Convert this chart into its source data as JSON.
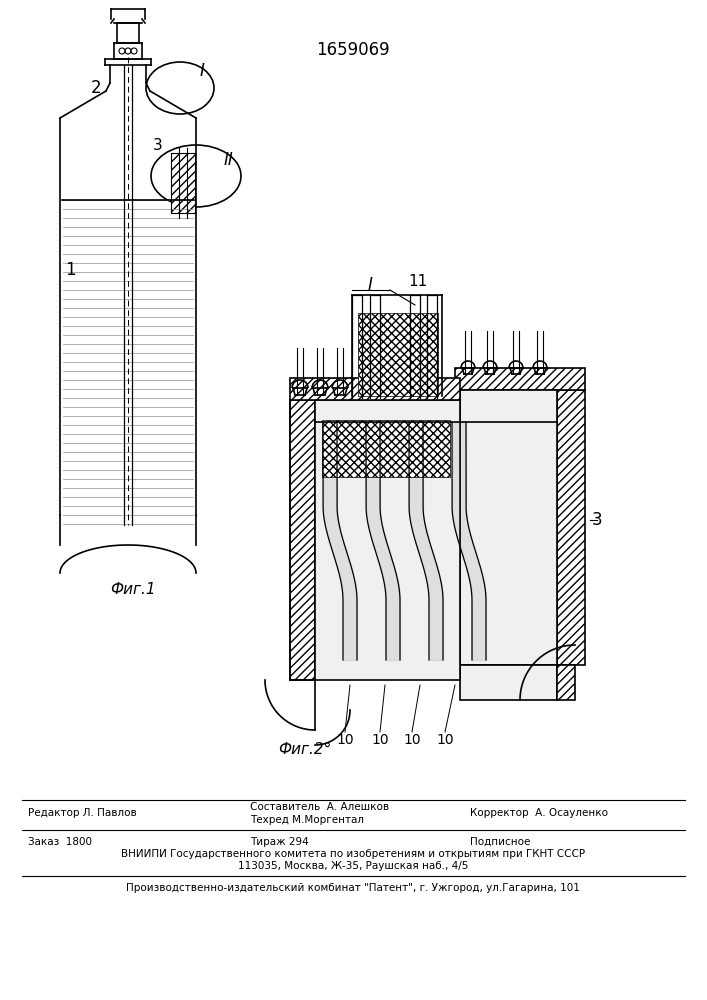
{
  "patent_number": "1659069",
  "fig1_label": "Фиг.1",
  "fig2_label": "Фиг.2°",
  "footer_line1_left": "Редактор Л. Павлов",
  "footer_line1_center": "Составитель  А. Алешков",
  "footer_line2_center": "Техред М.Моргентал",
  "footer_line2_right": "Корректор  А. Осауленко",
  "footer_line3_left": "Заказ  1800",
  "footer_line3_center": "Тираж 294",
  "footer_line3_right": "Подписное",
  "footer_line4": "ВНИИПИ Государственного комитета по изобретениям и открытиям при ГКНТ СССР",
  "footer_line5": "113035, Москва, Ж-35, Раушская наб., 4/5",
  "footer_line6": "Производственно-издательский комбинат \"Патент\", г. Ужгород, ул.Гагарина, 101",
  "label_1": "1",
  "label_2": "2",
  "label_3": "3",
  "label_I": "I",
  "label_II": "II",
  "label_11": "11",
  "label_10s": [
    "10",
    "10",
    "10",
    "10"
  ],
  "bg_color": "#ffffff",
  "line_color": "#000000"
}
